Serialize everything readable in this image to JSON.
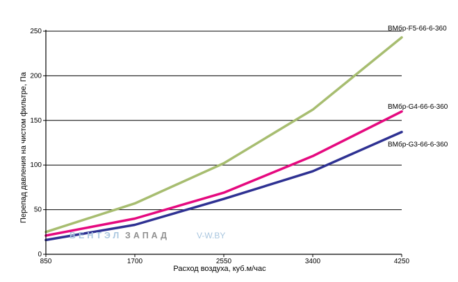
{
  "chart_data": {
    "type": "line",
    "xlabel": "Расход воздуха, куб.м/час",
    "ylabel": "Перепад давления на чистом фильтре, Па",
    "x": [
      850,
      1700,
      2550,
      3400,
      4250
    ],
    "xlim": [
      850,
      4250
    ],
    "ylim": [
      0,
      250
    ],
    "x_ticks": [
      "850",
      "1700",
      "2550",
      "3400",
      "4250"
    ],
    "y_ticks": [
      "0",
      "50",
      "100",
      "150",
      "200",
      "250"
    ],
    "grid": "horizontal",
    "series": [
      {
        "name": "ВМбр-F5-66-6-360",
        "color": "#a7bd70",
        "values": [
          25,
          57,
          102,
          162,
          243
        ]
      },
      {
        "name": "ВМбр-G4-66-6-360",
        "color": "#e5097f",
        "values": [
          21,
          40,
          69,
          110,
          160
        ]
      },
      {
        "name": "ВМбр-G3-66-6-360",
        "color": "#2e3192",
        "values": [
          16,
          33,
          62,
          93,
          137
        ]
      }
    ]
  },
  "watermark": {
    "brand_a": "ВЕНТЭЛ",
    "brand_b": "ЗАПАД",
    "site": "V-W.BY"
  }
}
